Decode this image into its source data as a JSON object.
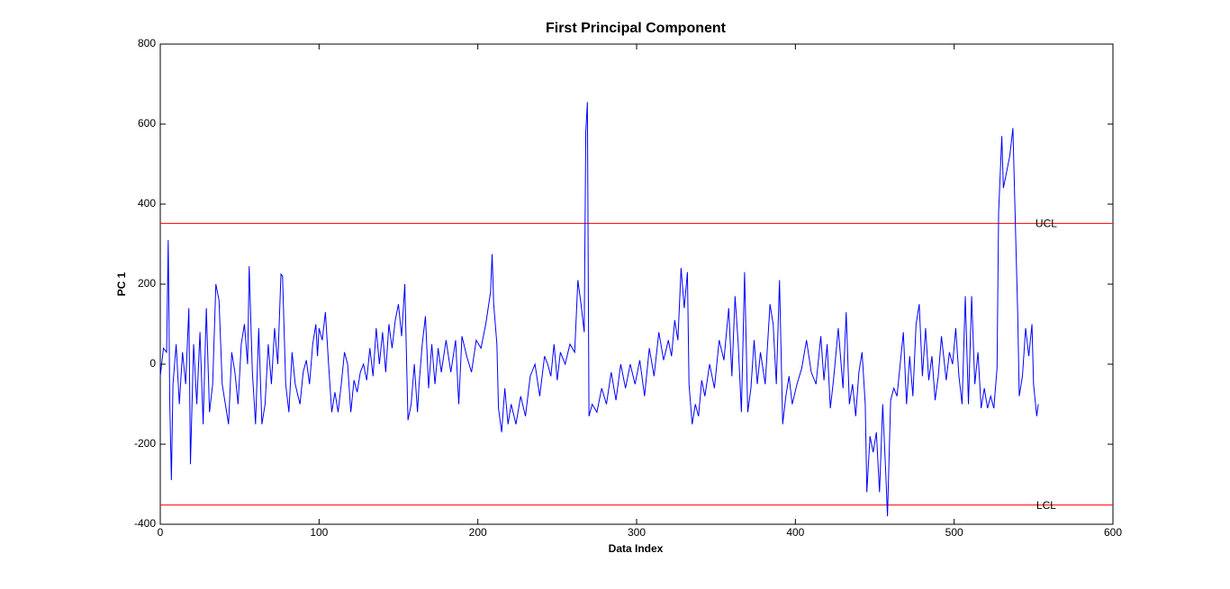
{
  "chart_data": {
    "type": "line",
    "title": "First Principal Component",
    "x_label": "Data Index",
    "y_label": "PC 1",
    "xlim": [
      0,
      600
    ],
    "ylim": [
      -400,
      800
    ],
    "xticks": [
      0,
      100,
      200,
      300,
      400,
      500,
      600
    ],
    "yticks": [
      -400,
      -200,
      0,
      200,
      400,
      600,
      800
    ],
    "grid": false,
    "control_limits": [
      {
        "label": "UCL",
        "value": 352,
        "color": "#ff0000"
      },
      {
        "label": "LCL",
        "value": -352,
        "color": "#ff0000"
      }
    ],
    "x": [
      0,
      2,
      4,
      5,
      6,
      7,
      8,
      10,
      12,
      14,
      16,
      18,
      19,
      21,
      23,
      25,
      27,
      29,
      31,
      33,
      35,
      37,
      39,
      41,
      43,
      45,
      47,
      49,
      51,
      53,
      55,
      56,
      58,
      60,
      62,
      64,
      66,
      68,
      70,
      72,
      74,
      76,
      77,
      79,
      81,
      83,
      85,
      88,
      90,
      92,
      94,
      96,
      98,
      99,
      100,
      102,
      104,
      106,
      108,
      110,
      112,
      114,
      116,
      118,
      120,
      122,
      124,
      126,
      128,
      130,
      132,
      134,
      136,
      138,
      140,
      142,
      144,
      146,
      148,
      150,
      152,
      154,
      156,
      158,
      160,
      162,
      163,
      165,
      167,
      169,
      171,
      173,
      175,
      177,
      180,
      183,
      186,
      188,
      190,
      193,
      196,
      199,
      202,
      205,
      208,
      209,
      210,
      212,
      213,
      215,
      217,
      219,
      221,
      224,
      227,
      230,
      233,
      236,
      239,
      242,
      244,
      246,
      248,
      250,
      252,
      255,
      258,
      261,
      263,
      265,
      267,
      268,
      269,
      270,
      272,
      275,
      278,
      281,
      284,
      287,
      290,
      293,
      296,
      299,
      302,
      305,
      308,
      311,
      314,
      317,
      320,
      322,
      324,
      326,
      328,
      330,
      332,
      333,
      335,
      337,
      339,
      341,
      343,
      346,
      349,
      352,
      355,
      358,
      360,
      362,
      364,
      366,
      368,
      370,
      372,
      374,
      376,
      378,
      381,
      384,
      386,
      388,
      390,
      392,
      394,
      396,
      398,
      401,
      404,
      407,
      410,
      413,
      416,
      418,
      420,
      422,
      424,
      427,
      430,
      432,
      434,
      436,
      438,
      440,
      442,
      444,
      445,
      447,
      449,
      451,
      453,
      455,
      457,
      458,
      460,
      462,
      464,
      466,
      468,
      470,
      472,
      474,
      476,
      478,
      480,
      482,
      484,
      486,
      488,
      490,
      492,
      495,
      497,
      499,
      501,
      503,
      505,
      507,
      509,
      511,
      513,
      515,
      517,
      519,
      521,
      523,
      525,
      527,
      528,
      530,
      531,
      533,
      535,
      537,
      539,
      540,
      541,
      543,
      545,
      547,
      549,
      550,
      552,
      553
    ],
    "series": [
      {
        "color": "#0000ff",
        "values": [
          -30,
          40,
          30,
          310,
          -100,
          -290,
          -50,
          50,
          -100,
          30,
          -50,
          140,
          -250,
          50,
          -100,
          80,
          -150,
          140,
          -120,
          -50,
          200,
          160,
          -50,
          -100,
          -150,
          30,
          -20,
          -100,
          50,
          100,
          0,
          245,
          -20,
          -150,
          90,
          -150,
          -100,
          50,
          -50,
          90,
          0,
          225,
          220,
          -50,
          -120,
          30,
          -50,
          -100,
          -20,
          10,
          -50,
          50,
          100,
          20,
          90,
          60,
          130,
          0,
          -120,
          -70,
          -120,
          -50,
          30,
          0,
          -120,
          -40,
          -70,
          -20,
          0,
          -40,
          40,
          -30,
          90,
          0,
          80,
          -20,
          100,
          40,
          110,
          150,
          70,
          200,
          -140,
          -100,
          0,
          -120,
          -50,
          50,
          120,
          -60,
          50,
          -50,
          40,
          -20,
          60,
          -20,
          60,
          -100,
          70,
          20,
          -20,
          60,
          40,
          100,
          180,
          275,
          150,
          50,
          -110,
          -170,
          -60,
          -150,
          -100,
          -150,
          -80,
          -130,
          -30,
          0,
          -80,
          20,
          0,
          -30,
          50,
          -40,
          30,
          0,
          50,
          30,
          210,
          150,
          80,
          580,
          655,
          -130,
          -100,
          -120,
          -60,
          -100,
          -20,
          -90,
          0,
          -60,
          0,
          -50,
          10,
          -80,
          40,
          -30,
          80,
          10,
          60,
          20,
          110,
          60,
          240,
          140,
          230,
          -50,
          -150,
          -100,
          -130,
          -40,
          -80,
          0,
          -60,
          60,
          10,
          140,
          -30,
          170,
          50,
          -120,
          230,
          -120,
          -60,
          60,
          -50,
          30,
          -50,
          150,
          100,
          -50,
          210,
          -150,
          -80,
          -30,
          -100,
          -50,
          -10,
          60,
          -20,
          -50,
          70,
          -40,
          50,
          -110,
          -40,
          90,
          -60,
          130,
          -100,
          -50,
          -130,
          -20,
          30,
          -100,
          -320,
          -180,
          -220,
          -170,
          -320,
          -100,
          -280,
          -380,
          -90,
          -60,
          -80,
          0,
          80,
          -100,
          20,
          -80,
          100,
          150,
          -30,
          90,
          -40,
          20,
          -90,
          -30,
          70,
          -40,
          30,
          0,
          90,
          -30,
          -100,
          170,
          -100,
          170,
          -50,
          30,
          -110,
          -60,
          -110,
          -80,
          -110,
          -10,
          380,
          570,
          440,
          480,
          520,
          590,
          280,
          130,
          -80,
          -30,
          90,
          20,
          100,
          -50,
          -130,
          -100
        ]
      }
    ]
  }
}
